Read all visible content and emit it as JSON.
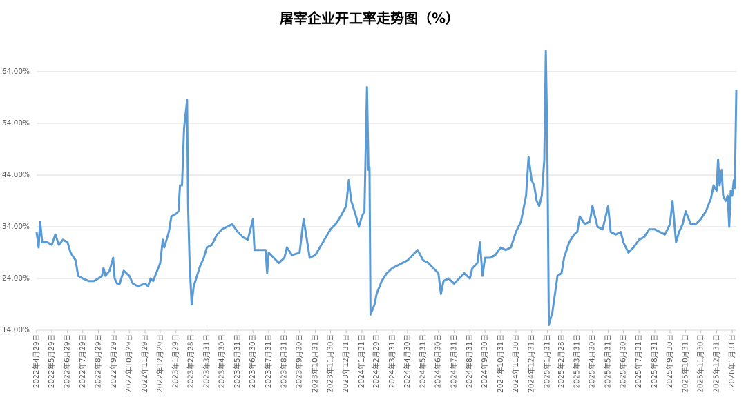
{
  "chart_data": {
    "type": "line",
    "title": "屠宰企业开工率走势图（%）",
    "x": [
      "2022-04-29",
      "2022-05-03",
      "2022-05-06",
      "2022-05-10",
      "2022-05-20",
      "2022-05-29",
      "2022-06-05",
      "2022-06-12",
      "2022-06-20",
      "2022-06-29",
      "2022-07-05",
      "2022-07-15",
      "2022-07-20",
      "2022-07-29",
      "2022-08-10",
      "2022-08-20",
      "2022-08-29",
      "2022-09-05",
      "2022-09-08",
      "2022-09-12",
      "2022-09-20",
      "2022-09-27",
      "2022-09-30",
      "2022-10-05",
      "2022-10-10",
      "2022-10-18",
      "2022-10-29",
      "2022-11-05",
      "2022-11-15",
      "2022-11-29",
      "2022-12-05",
      "2022-12-10",
      "2022-12-15",
      "2022-12-25",
      "2022-12-29",
      "2023-01-03",
      "2023-01-06",
      "2023-01-15",
      "2023-01-20",
      "2023-01-29",
      "2023-02-03",
      "2023-02-06",
      "2023-02-10",
      "2023-02-14",
      "2023-02-20",
      "2023-02-22",
      "2023-02-25",
      "2023-03-01",
      "2023-03-05",
      "2023-03-10",
      "2023-03-18",
      "2023-03-25",
      "2023-03-31",
      "2023-04-10",
      "2023-04-20",
      "2023-04-30",
      "2023-05-10",
      "2023-05-20",
      "2023-05-31",
      "2023-06-10",
      "2023-06-20",
      "2023-06-30",
      "2023-07-03",
      "2023-07-15",
      "2023-07-25",
      "2023-07-28",
      "2023-07-31",
      "2023-08-10",
      "2023-08-20",
      "2023-08-31",
      "2023-09-05",
      "2023-09-15",
      "2023-09-30",
      "2023-10-08",
      "2023-10-20",
      "2023-10-31",
      "2023-11-15",
      "2023-11-30",
      "2023-12-10",
      "2023-12-20",
      "2023-12-31",
      "2024-01-05",
      "2024-01-10",
      "2024-01-18",
      "2024-01-25",
      "2024-01-31",
      "2024-02-05",
      "2024-02-10",
      "2024-02-13",
      "2024-02-15",
      "2024-02-17",
      "2024-02-25",
      "2024-02-29",
      "2024-03-10",
      "2024-03-20",
      "2024-03-31",
      "2024-04-10",
      "2024-04-20",
      "2024-04-30",
      "2024-05-10",
      "2024-05-20",
      "2024-05-31",
      "2024-06-10",
      "2024-06-20",
      "2024-06-30",
      "2024-07-05",
      "2024-07-10",
      "2024-07-20",
      "2024-07-31",
      "2024-08-10",
      "2024-08-20",
      "2024-08-31",
      "2024-09-05",
      "2024-09-15",
      "2024-09-20",
      "2024-09-25",
      "2024-09-30",
      "2024-10-10",
      "2024-10-20",
      "2024-10-31",
      "2024-11-10",
      "2024-11-20",
      "2024-11-30",
      "2024-12-10",
      "2024-12-20",
      "2024-12-25",
      "2024-12-31",
      "2025-01-05",
      "2025-01-10",
      "2025-01-15",
      "2025-01-20",
      "2025-01-25",
      "2025-01-28",
      "2025-01-31",
      "2025-02-03",
      "2025-02-10",
      "2025-02-15",
      "2025-02-20",
      "2025-02-28",
      "2025-03-05",
      "2025-03-15",
      "2025-03-25",
      "2025-03-31",
      "2025-04-05",
      "2025-04-15",
      "2025-04-25",
      "2025-04-30",
      "2025-05-10",
      "2025-05-20",
      "2025-05-31",
      "2025-06-05",
      "2025-06-15",
      "2025-06-25",
      "2025-06-30",
      "2025-07-10",
      "2025-07-20",
      "2025-07-31",
      "2025-08-10",
      "2025-08-20",
      "2025-08-31",
      "2025-09-10",
      "2025-09-20",
      "2025-09-25",
      "2025-09-30",
      "2025-10-05",
      "2025-10-12",
      "2025-10-18",
      "2025-10-25",
      "2025-10-31",
      "2025-11-10",
      "2025-11-20",
      "2025-11-30",
      "2025-12-10",
      "2025-12-20",
      "2025-12-25",
      "2025-12-31",
      "2026-01-03",
      "2026-01-06",
      "2026-01-10",
      "2026-01-13",
      "2026-01-18",
      "2026-01-22",
      "2026-01-25",
      "2026-01-28",
      "2026-01-31",
      "2026-02-03",
      "2026-02-05",
      "2026-02-08"
    ],
    "series": [
      {
        "name": "开工率",
        "color": "#5b9bd5",
        "values": [
          33,
          30,
          35,
          31,
          31,
          30.5,
          32.5,
          30.5,
          31.5,
          31,
          29,
          27.5,
          24.5,
          24,
          23.5,
          23.5,
          24,
          24.5,
          26,
          24.5,
          25.5,
          28,
          24,
          23,
          23,
          25.5,
          24.5,
          23,
          22.5,
          23,
          22.5,
          24,
          23.5,
          26,
          27,
          31.5,
          30,
          33,
          36,
          36.5,
          37,
          42,
          42,
          53,
          58.5,
          38,
          27,
          19,
          22.5,
          24,
          26.5,
          28,
          30,
          30.5,
          32.5,
          33.5,
          34,
          34.5,
          33,
          32,
          31.5,
          35.5,
          29.5,
          29.5,
          29.5,
          25,
          29,
          28,
          27,
          28,
          30,
          28.5,
          29,
          35.5,
          28,
          28.5,
          31,
          33.5,
          34.5,
          36,
          38,
          43,
          39,
          36.5,
          34,
          36,
          37,
          61,
          45,
          45.5,
          17,
          19,
          21,
          23.5,
          25,
          26,
          26.5,
          27,
          27.5,
          28.5,
          29.5,
          27.5,
          27,
          26,
          25,
          21,
          23.5,
          24,
          23,
          24,
          25,
          24,
          26,
          27,
          31,
          24.5,
          28,
          28,
          28.5,
          30,
          29.5,
          30,
          33,
          35,
          40,
          47.5,
          43,
          42,
          39,
          38,
          40,
          47,
          68,
          50,
          15,
          17.5,
          21,
          24.5,
          25,
          28,
          31,
          32.5,
          33,
          36,
          34.5,
          35,
          38,
          34,
          33.5,
          38,
          33,
          32.5,
          33,
          31,
          29,
          30,
          31.5,
          32,
          33.5,
          33.5,
          33,
          32.5,
          33.5,
          34.5,
          39,
          31,
          33,
          34.5,
          37,
          34.5,
          34.5,
          35.5,
          37,
          39.5,
          42,
          41,
          47,
          42,
          45,
          40,
          39,
          40,
          34,
          41,
          40,
          43,
          41.5,
          60.5
        ]
      }
    ],
    "xlim": [
      "2022-04-29",
      "2026-02-08"
    ],
    "xticks": [
      {
        "value": "2022-04-29",
        "label": "2022年4月29日"
      },
      {
        "value": "2022-05-29",
        "label": "2022年5月29日"
      },
      {
        "value": "2022-06-29",
        "label": "2022年6月29日"
      },
      {
        "value": "2022-07-29",
        "label": "2022年7月29日"
      },
      {
        "value": "2022-08-29",
        "label": "2022年8月29日"
      },
      {
        "value": "2022-09-29",
        "label": "2022年9月29日"
      },
      {
        "value": "2022-10-29",
        "label": "2022年10月29日"
      },
      {
        "value": "2022-11-29",
        "label": "2022年11月29日"
      },
      {
        "value": "2022-12-29",
        "label": "2022年12月29日"
      },
      {
        "value": "2023-01-29",
        "label": "2023年1月29日"
      },
      {
        "value": "2023-02-28",
        "label": "2023年2月28日"
      },
      {
        "value": "2023-03-31",
        "label": "2023年3月31日"
      },
      {
        "value": "2023-04-30",
        "label": "2023年4月30日"
      },
      {
        "value": "2023-05-31",
        "label": "2023年5月31日"
      },
      {
        "value": "2023-06-30",
        "label": "2023年6月30日"
      },
      {
        "value": "2023-07-31",
        "label": "2023年7月31日"
      },
      {
        "value": "2023-08-31",
        "label": "2023年8月31日"
      },
      {
        "value": "2023-09-30",
        "label": "2023年9月30日"
      },
      {
        "value": "2023-10-31",
        "label": "2023年10月31日"
      },
      {
        "value": "2023-11-30",
        "label": "2023年11月30日"
      },
      {
        "value": "2023-12-31",
        "label": "2023年12月31日"
      },
      {
        "value": "2024-01-31",
        "label": "2024年1月31日"
      },
      {
        "value": "2024-02-29",
        "label": "2024年2月29日"
      },
      {
        "value": "2024-03-31",
        "label": "2024年3月31日"
      },
      {
        "value": "2024-04-30",
        "label": "2024年4月30日"
      },
      {
        "value": "2024-05-31",
        "label": "2024年5月31日"
      },
      {
        "value": "2024-06-30",
        "label": "2024年6月30日"
      },
      {
        "value": "2024-07-31",
        "label": "2024年7月31日"
      },
      {
        "value": "2024-08-31",
        "label": "2024年8月31日"
      },
      {
        "value": "2024-09-30",
        "label": "2024年9月30日"
      },
      {
        "value": "2024-10-31",
        "label": "2024年10月31日"
      },
      {
        "value": "2024-11-30",
        "label": "2024年11月30日"
      },
      {
        "value": "2024-12-31",
        "label": "2024年12月31日"
      },
      {
        "value": "2025-01-31",
        "label": "2025年1月31日"
      },
      {
        "value": "2025-02-28",
        "label": "2025年2月28日"
      },
      {
        "value": "2025-03-31",
        "label": "2025年3月31日"
      },
      {
        "value": "2025-04-30",
        "label": "2025年4月30日"
      },
      {
        "value": "2025-05-31",
        "label": "2025年5月31日"
      },
      {
        "value": "2025-06-30",
        "label": "2025年6月30日"
      },
      {
        "value": "2025-07-31",
        "label": "2025年7月31日"
      },
      {
        "value": "2025-08-31",
        "label": "2025年8月31日"
      },
      {
        "value": "2025-09-30",
        "label": "2025年9月30日"
      },
      {
        "value": "2025-10-31",
        "label": "2025年10月31日"
      },
      {
        "value": "2025-11-30",
        "label": "2025年11月30日"
      },
      {
        "value": "2025-12-31",
        "label": "2025年12月31日"
      },
      {
        "value": "2026-01-31",
        "label": "2026年1月31日"
      }
    ],
    "ylim": [
      14,
      70
    ],
    "yticks": [
      {
        "value": 14,
        "label": "14.00%"
      },
      {
        "value": 24,
        "label": "24.00%"
      },
      {
        "value": 34,
        "label": "34.00%"
      },
      {
        "value": 44,
        "label": "44.00%"
      },
      {
        "value": 54,
        "label": "54.00%"
      },
      {
        "value": 64,
        "label": "64.00%"
      }
    ],
    "grid": true
  }
}
